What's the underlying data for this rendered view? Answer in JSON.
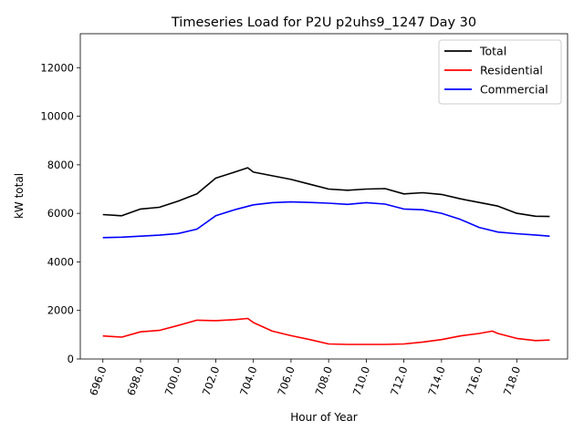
{
  "chart_data": {
    "type": "line",
    "title": "Timeseries Load for P2U p2uhs9_1247  Day 30",
    "xlabel": "Hour of Year",
    "ylabel": "kW total",
    "xlim": [
      694.8,
      720.7
    ],
    "ylim": [
      0,
      13400
    ],
    "xticks": [
      696,
      698,
      700,
      702,
      704,
      706,
      708,
      710,
      712,
      714,
      716,
      718
    ],
    "xtick_labels": [
      "696.0",
      "698.0",
      "700.0",
      "702.0",
      "704.0",
      "706.0",
      "708.0",
      "710.0",
      "712.0",
      "714.0",
      "716.0",
      "718.0"
    ],
    "yticks": [
      0,
      2000,
      4000,
      6000,
      8000,
      10000,
      12000
    ],
    "ytick_labels": [
      "0",
      "2000",
      "4000",
      "6000",
      "8000",
      "10000",
      "12000"
    ],
    "legend_position": "top-right",
    "grid": false,
    "series": [
      {
        "name": "Total",
        "color": "#000000",
        "x": [
          696,
          697,
          698,
          699,
          700,
          701,
          702,
          703,
          703.7,
          704,
          705,
          706,
          707,
          708,
          709,
          710,
          711,
          712,
          713,
          714,
          715,
          716,
          717,
          718,
          719,
          719.75
        ],
        "y": [
          5950,
          5900,
          6180,
          6250,
          6500,
          6800,
          7450,
          7700,
          7880,
          7700,
          7550,
          7400,
          7200,
          7000,
          6950,
          7000,
          7020,
          6800,
          6850,
          6780,
          6600,
          6450,
          6300,
          6000,
          5880,
          5870
        ]
      },
      {
        "name": "Residential",
        "color": "#ff0000",
        "x": [
          696,
          697,
          698,
          699,
          700,
          701,
          702,
          703,
          703.7,
          704,
          705,
          706,
          707,
          708,
          709,
          710,
          711,
          712,
          713,
          714,
          715,
          716,
          716.7,
          717,
          718,
          719,
          719.75
        ],
        "y": [
          950,
          900,
          1120,
          1180,
          1380,
          1600,
          1580,
          1620,
          1670,
          1500,
          1150,
          960,
          800,
          620,
          600,
          600,
          600,
          620,
          700,
          800,
          950,
          1050,
          1150,
          1050,
          850,
          760,
          780
        ]
      },
      {
        "name": "Commercial",
        "color": "#0000ff",
        "x": [
          696,
          697,
          698,
          699,
          700,
          701,
          702,
          703,
          704,
          705,
          706,
          707,
          708,
          709,
          710,
          711,
          712,
          713,
          714,
          715,
          716,
          717,
          718,
          719,
          719.75
        ],
        "y": [
          5000,
          5020,
          5060,
          5100,
          5170,
          5350,
          5900,
          6150,
          6350,
          6440,
          6470,
          6450,
          6420,
          6370,
          6440,
          6380,
          6180,
          6150,
          6000,
          5750,
          5420,
          5230,
          5160,
          5110,
          5060
        ]
      }
    ]
  }
}
